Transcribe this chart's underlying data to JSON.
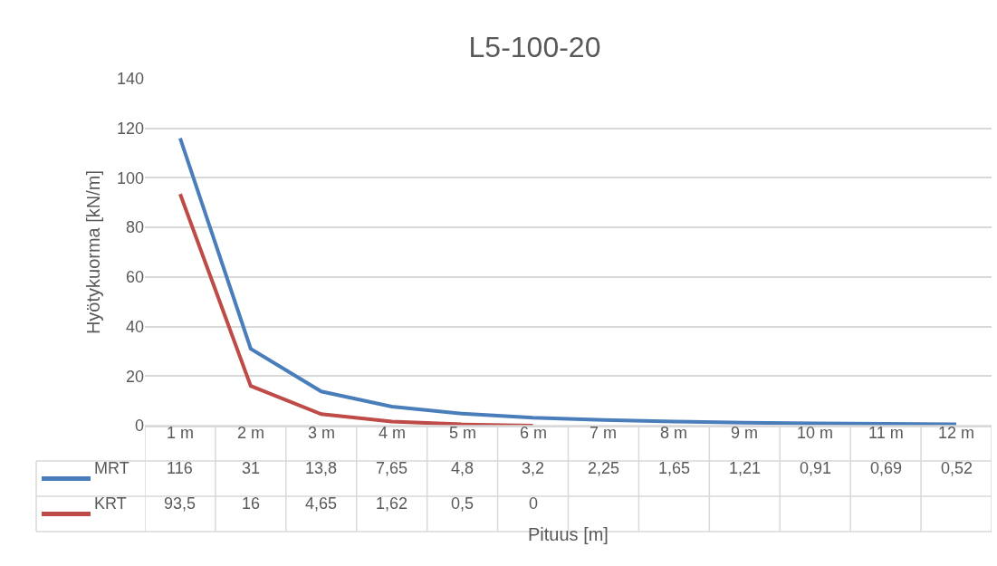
{
  "chart_data": {
    "type": "line",
    "title": "L5-100-20",
    "xlabel": "Pituus [m]",
    "ylabel": "Hyötykuorma [kN/m]",
    "categories": [
      "1 m",
      "2 m",
      "3 m",
      "4 m",
      "5 m",
      "6 m",
      "7 m",
      "8 m",
      "9 m",
      "10 m",
      "11 m",
      "12 m"
    ],
    "series": [
      {
        "name": "MRT",
        "color": "#4a7ebb",
        "values": [
          116,
          31,
          13.8,
          7.65,
          4.8,
          3.2,
          2.25,
          1.65,
          1.21,
          0.91,
          0.69,
          0.52
        ],
        "value_labels": [
          "116",
          "31",
          "13,8",
          "7,65",
          "4,8",
          "3,2",
          "2,25",
          "1,65",
          "1,21",
          "0,91",
          "0,69",
          "0,52"
        ]
      },
      {
        "name": "KRT",
        "color": "#be4b48",
        "values": [
          93.5,
          16,
          4.65,
          1.62,
          0.5,
          0,
          null,
          null,
          null,
          null,
          null,
          null
        ],
        "value_labels": [
          "93,5",
          "16",
          "4,65",
          "1,62",
          "0,5",
          "0",
          null,
          null,
          null,
          null,
          null,
          null
        ]
      }
    ],
    "ylim": [
      0,
      140
    ],
    "yticks": [
      0,
      20,
      40,
      60,
      80,
      100,
      120,
      140
    ],
    "grid": "y",
    "legend": "bottom",
    "marker": "none",
    "line_style": "solid"
  }
}
